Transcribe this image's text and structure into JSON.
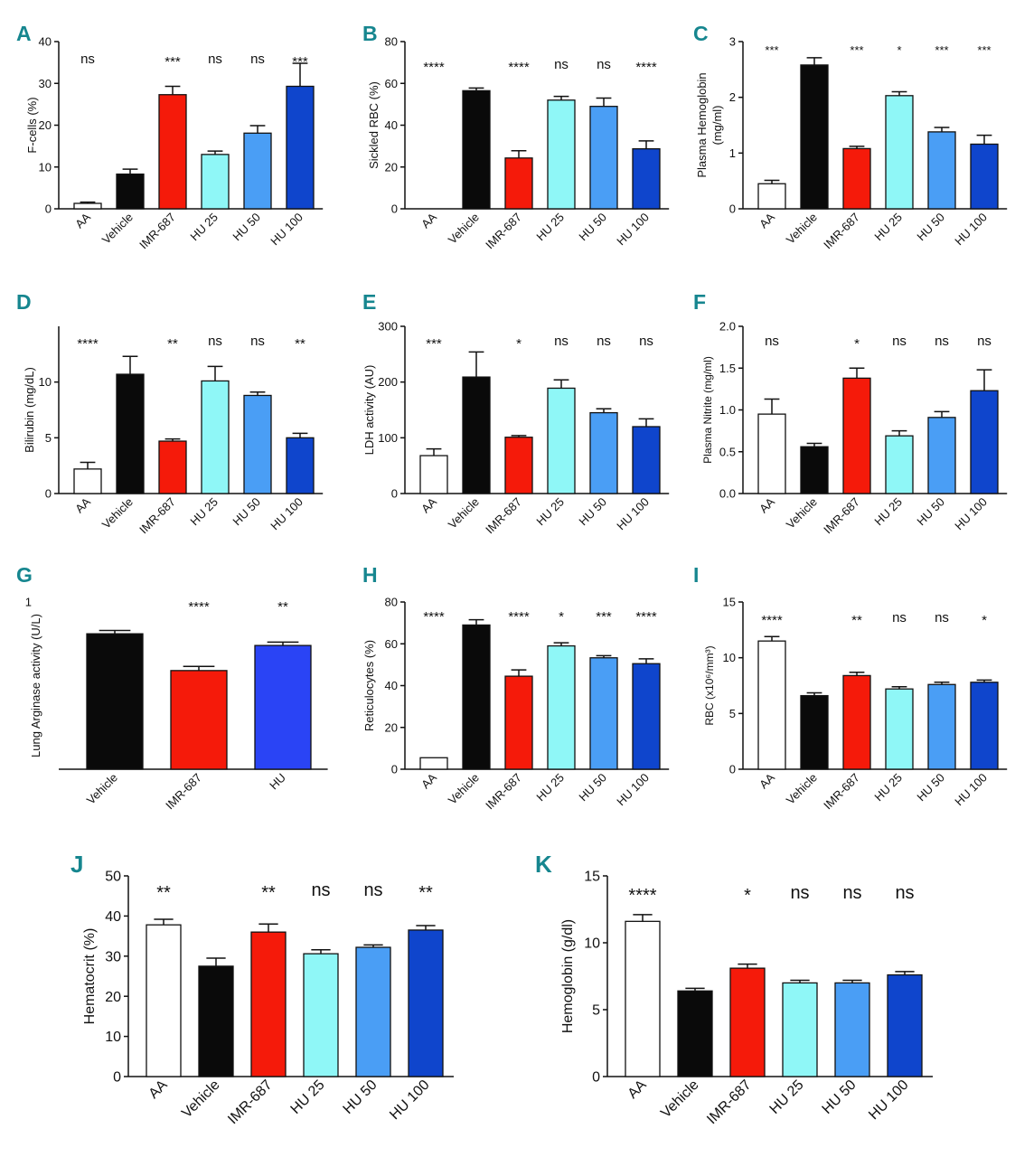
{
  "colors": {
    "AA": "#ffffff",
    "Vehicle": "#0a0a0a",
    "IMR-687": "#f51a0a",
    "HU 25": "#8ff7f7",
    "HU 50": "#4a9ef5",
    "HU 100": "#0f45cc",
    "HU": "#2a44f5",
    "panel_letter": "#16868f"
  },
  "chart_data": [
    {
      "panel": "A",
      "type": "bar",
      "title": "",
      "xlabel": "",
      "ylabel": "F-cells (%)",
      "categories": [
        "AA",
        "Vehicle",
        "IMR-687",
        "HU 25",
        "HU 50",
        "HU 100"
      ],
      "values": [
        1.3,
        8.3,
        27.3,
        13.0,
        18.1,
        29.3
      ],
      "errors": [
        0.3,
        1.2,
        2.0,
        0.8,
        1.8,
        5.5
      ],
      "significance": [
        "ns",
        "",
        "***",
        "ns",
        "ns",
        "***"
      ],
      "ylim": [
        0,
        40
      ],
      "yticks": [
        0,
        10,
        20,
        30,
        40
      ]
    },
    {
      "panel": "B",
      "type": "bar",
      "title": "",
      "xlabel": "",
      "ylabel": "Sickled RBC (%)",
      "categories": [
        "AA",
        "Vehicle",
        "IMR-687",
        "HU 25",
        "HU 50",
        "HU 100"
      ],
      "values": [
        0,
        56.5,
        24.3,
        52.0,
        49.0,
        28.7
      ],
      "errors": [
        0,
        1.3,
        3.5,
        1.8,
        4.0,
        3.8
      ],
      "significance": [
        "****",
        "",
        "****",
        "ns",
        "ns",
        "****"
      ],
      "ylim": [
        0,
        80
      ],
      "yticks": [
        0,
        20,
        40,
        60,
        80
      ]
    },
    {
      "panel": "C",
      "type": "bar",
      "title": "",
      "xlabel": "",
      "ylabel": [
        "Plasma Hemoglobin",
        "(mg/ml)"
      ],
      "categories": [
        "AA",
        "Vehicle",
        "IMR-687",
        "HU 25",
        "HU 50",
        "HU 100"
      ],
      "values": [
        0.45,
        2.58,
        1.08,
        2.03,
        1.38,
        1.16
      ],
      "errors": [
        0.06,
        0.13,
        0.04,
        0.07,
        0.08,
        0.16
      ],
      "significance": [
        "***",
        "",
        "***",
        "*",
        "***",
        "***"
      ],
      "ylim": [
        0,
        3
      ],
      "yticks": [
        0,
        1,
        2,
        3
      ]
    },
    {
      "panel": "D",
      "type": "bar",
      "title": "",
      "xlabel": "",
      "ylabel": "Bilirubin (mg/dL)",
      "categories": [
        "AA",
        "Vehicle",
        "IMR-687",
        "HU 25",
        "HU 50",
        "HU 100"
      ],
      "values": [
        2.2,
        10.7,
        4.7,
        10.1,
        8.8,
        5.0
      ],
      "errors": [
        0.6,
        1.6,
        0.2,
        1.3,
        0.3,
        0.4
      ],
      "significance": [
        "****",
        "",
        "**",
        "ns",
        "ns",
        "**"
      ],
      "ylim": [
        0,
        15
      ],
      "yticks": [
        0,
        5,
        10
      ]
    },
    {
      "panel": "E",
      "type": "bar",
      "title": "",
      "xlabel": "",
      "ylabel": "LDH activity (AU)",
      "categories": [
        "AA",
        "Vehicle",
        "IMR-687",
        "HU 25",
        "HU 50",
        "HU 100"
      ],
      "values": [
        68,
        209,
        101,
        189,
        145,
        120
      ],
      "errors": [
        12,
        45,
        3,
        15,
        7,
        14
      ],
      "significance": [
        "***",
        "",
        "*",
        "ns",
        "ns",
        "ns"
      ],
      "ylim": [
        0,
        300
      ],
      "yticks": [
        0,
        100,
        200,
        300
      ]
    },
    {
      "panel": "F",
      "type": "bar",
      "title": "",
      "xlabel": "",
      "ylabel": "Plasma Nitrite (mg/ml)",
      "categories": [
        "AA",
        "Vehicle",
        "IMR-687",
        "HU 25",
        "HU 50",
        "HU 100"
      ],
      "values": [
        0.95,
        0.56,
        1.38,
        0.69,
        0.91,
        1.23
      ],
      "errors": [
        0.18,
        0.04,
        0.12,
        0.06,
        0.07,
        0.25
      ],
      "significance": [
        "ns",
        "",
        "*",
        "ns",
        "ns",
        "ns"
      ],
      "ylim": [
        0,
        2.0
      ],
      "yticks": [
        0.0,
        0.5,
        1.0,
        1.5,
        2.0
      ],
      "tick_decimals": 1
    },
    {
      "panel": "G",
      "type": "bar",
      "title": "",
      "xlabel": "",
      "ylabel": "Lung Arginase activity (U/L)",
      "categories": [
        "Vehicle",
        "IMR-687",
        "HU"
      ],
      "values": [
        0.81,
        0.59,
        0.74
      ],
      "errors": [
        0.02,
        0.025,
        0.02
      ],
      "significance": [
        "",
        "****",
        "**"
      ],
      "ylim": [
        0,
        1
      ],
      "yticks": [
        1
      ],
      "hide_zero_tick": true
    },
    {
      "panel": "H",
      "type": "bar",
      "title": "",
      "xlabel": "",
      "ylabel": "Reticulocytes (%)",
      "categories": [
        "AA",
        "Vehicle",
        "IMR-687",
        "HU 25",
        "HU 50",
        "HU 100"
      ],
      "values": [
        5.5,
        69.0,
        44.5,
        59.0,
        53.3,
        50.5
      ],
      "errors": [
        0,
        2.5,
        3.0,
        1.5,
        1.0,
        2.3
      ],
      "significance": [
        "****",
        "",
        "****",
        "*",
        "***",
        "****"
      ],
      "ylim": [
        0,
        80
      ],
      "yticks": [
        0,
        20,
        40,
        60,
        80
      ]
    },
    {
      "panel": "I",
      "type": "bar",
      "title": "",
      "xlabel": "",
      "ylabel": "RBC (x10⁶/mm³)",
      "categories": [
        "AA",
        "Vehicle",
        "IMR-687",
        "HU 25",
        "HU 50",
        "HU 100"
      ],
      "values": [
        11.5,
        6.6,
        8.4,
        7.2,
        7.6,
        7.8
      ],
      "errors": [
        0.4,
        0.25,
        0.3,
        0.2,
        0.2,
        0.2
      ],
      "significance": [
        "****",
        "",
        "**",
        "ns",
        "ns",
        "*"
      ],
      "ylim": [
        0,
        15
      ],
      "yticks": [
        0,
        5,
        10,
        15
      ]
    },
    {
      "panel": "J",
      "type": "bar",
      "title": "",
      "xlabel": "",
      "ylabel": "Hematocrit (%)",
      "categories": [
        "AA",
        "Vehicle",
        "IMR-687",
        "HU 25",
        "HU 50",
        "HU 100"
      ],
      "values": [
        37.8,
        27.5,
        36.0,
        30.6,
        32.2,
        36.5
      ],
      "errors": [
        1.4,
        2.0,
        2.0,
        1.0,
        0.6,
        1.1
      ],
      "significance": [
        "**",
        "",
        "**",
        "ns",
        "ns",
        "**"
      ],
      "ylim": [
        0,
        50
      ],
      "yticks": [
        0,
        10,
        20,
        30,
        40,
        50
      ]
    },
    {
      "panel": "K",
      "type": "bar",
      "title": "",
      "xlabel": "",
      "ylabel": "Hemoglobin (g/dl)",
      "categories": [
        "AA",
        "Vehicle",
        "IMR-687",
        "HU 25",
        "HU 50",
        "HU 100"
      ],
      "values": [
        11.6,
        6.4,
        8.1,
        7.0,
        7.0,
        7.6
      ],
      "errors": [
        0.5,
        0.2,
        0.3,
        0.2,
        0.2,
        0.25
      ],
      "significance": [
        "****",
        "",
        "*",
        "ns",
        "ns",
        "ns"
      ],
      "ylim": [
        0,
        15
      ],
      "yticks": [
        0,
        5,
        10,
        15
      ]
    }
  ]
}
